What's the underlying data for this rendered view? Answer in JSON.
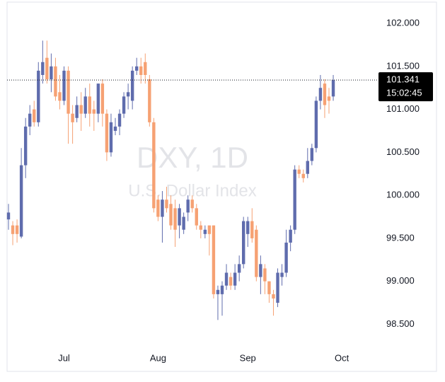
{
  "chart_data": {
    "type": "candlestick",
    "title": "DXY, 1D",
    "subtitle": "U.S. Dollar Index",
    "countdown": "15:02:45",
    "up_color": "#5f6cad",
    "down_color": "#f6a173",
    "categories": [
      null,
      null,
      null,
      null,
      null,
      null,
      null,
      null,
      null,
      null,
      null,
      null,
      null,
      "Jul",
      null,
      null,
      null,
      null,
      null,
      null,
      null,
      null,
      null,
      null,
      null,
      null,
      null,
      null,
      null,
      null,
      null,
      null,
      null,
      null,
      null,
      "Aug",
      null,
      null,
      null,
      null,
      null,
      null,
      null,
      null,
      null,
      null,
      null,
      null,
      null,
      null,
      null,
      null,
      null,
      null,
      null,
      null,
      "Sep",
      null,
      null,
      null,
      null,
      null,
      null,
      null,
      null,
      null,
      null,
      null,
      null,
      null,
      null,
      null,
      null,
      null,
      null,
      null,
      null,
      null,
      "Oct"
    ],
    "open": [
      99.72,
      99.65,
      99.65,
      99.52,
      100.35,
      100.8,
      101.0,
      100.85,
      101.4,
      101.6,
      101.35,
      101.5,
      101.2,
      101.1,
      101.45,
      100.95,
      100.9,
      101.05,
      100.95,
      101.15,
      101.0,
      100.95,
      101.3,
      100.95,
      100.5,
      100.75,
      100.8,
      100.95,
      101.15,
      101.1,
      101.45,
      101.5,
      101.55,
      101.35,
      100.85,
      99.95,
      99.75,
      99.95,
      99.9,
      99.85,
      99.65,
      99.6,
      99.8,
      99.95,
      99.85,
      99.65,
      99.55,
      99.65,
      99.65,
      98.85,
      98.85,
      98.95,
      99.05,
      98.95,
      99.1,
      99.2,
      99.55,
      99.7,
      99.6,
      99.05,
      99.15,
      99.0,
      98.85,
      98.75,
      99.05,
      99.1,
      99.45,
      99.6,
      100.3,
      100.25,
      100.25,
      100.4,
      100.55,
      101.1,
      101.3,
      101.15,
      101.15,
      null,
      null
    ],
    "high": [
      99.9,
      99.7,
      99.72,
      100.55,
      100.9,
      101.05,
      101.1,
      101.55,
      101.8,
      101.8,
      101.65,
      101.6,
      101.4,
      101.5,
      101.5,
      101.05,
      101.15,
      101.2,
      101.25,
      101.3,
      101.1,
      101.3,
      101.35,
      101.0,
      100.95,
      100.9,
      101.0,
      101.2,
      101.3,
      101.5,
      101.6,
      101.6,
      101.65,
      101.4,
      100.9,
      100.0,
      100.05,
      100.1,
      100.0,
      99.95,
      99.9,
      99.8,
      100.0,
      100.0,
      99.9,
      99.7,
      99.65,
      99.65,
      99.65,
      98.95,
      99.0,
      99.2,
      99.1,
      99.2,
      99.3,
      99.75,
      99.75,
      99.85,
      99.65,
      99.3,
      99.2,
      99.0,
      98.9,
      99.15,
      99.2,
      99.6,
      99.65,
      100.35,
      100.35,
      100.3,
      100.55,
      100.6,
      101.15,
      101.4,
      101.35,
      101.25,
      101.4,
      null,
      null
    ],
    "low": [
      99.6,
      99.42,
      99.45,
      99.5,
      100.2,
      100.7,
      100.8,
      100.8,
      101.3,
      101.3,
      101.2,
      101.1,
      101.0,
      101.05,
      100.6,
      100.6,
      100.85,
      100.75,
      100.9,
      100.8,
      100.75,
      100.85,
      100.8,
      100.4,
      100.45,
      100.7,
      100.7,
      100.9,
      101.0,
      101.0,
      101.4,
      101.3,
      101.3,
      100.8,
      99.8,
      99.7,
      99.45,
      99.8,
      99.6,
      99.4,
      99.5,
      99.55,
      99.7,
      99.8,
      99.6,
      99.5,
      99.5,
      99.3,
      98.8,
      98.55,
      98.6,
      98.9,
      98.9,
      98.9,
      99.0,
      99.15,
      99.4,
      99.45,
      99.0,
      98.85,
      98.85,
      98.75,
      98.6,
      98.7,
      98.95,
      99.05,
      99.35,
      99.55,
      100.2,
      100.15,
      100.2,
      100.35,
      100.5,
      101.0,
      100.9,
      100.95,
      101.1,
      null,
      null
    ],
    "close": [
      99.8,
      99.55,
      99.55,
      100.35,
      100.8,
      100.95,
      100.85,
      101.45,
      101.55,
      101.35,
      101.5,
      101.15,
      101.1,
      101.45,
      100.95,
      100.85,
      101.05,
      100.95,
      101.15,
      100.95,
      100.95,
      101.3,
      100.95,
      100.5,
      100.85,
      100.8,
      100.95,
      101.15,
      101.2,
      101.45,
      101.5,
      101.4,
      101.4,
      100.85,
      99.85,
      99.75,
      99.95,
      99.85,
      99.65,
      99.6,
      99.85,
      99.75,
      99.95,
      99.85,
      99.65,
      99.6,
      99.6,
      99.55,
      98.85,
      98.9,
      98.95,
      99.1,
      98.95,
      99.1,
      99.2,
      99.7,
      99.7,
      99.5,
      99.05,
      99.2,
      99.0,
      98.85,
      98.8,
      99.1,
      99.1,
      99.45,
      99.6,
      100.3,
      100.25,
      100.2,
      100.4,
      100.55,
      101.1,
      101.25,
      101.05,
      101.1,
      101.341,
      null,
      null
    ],
    "ylim": [
      98.24,
      102.19
    ],
    "yticks": [
      {
        "value": 98.5,
        "label": "98.500"
      },
      {
        "value": 99,
        "label": "99.000"
      },
      {
        "value": 99.5,
        "label": "99.500"
      },
      {
        "value": 100,
        "label": "100.000"
      },
      {
        "value": 100.5,
        "label": "100.500"
      },
      {
        "value": 101,
        "label": "101.000"
      },
      {
        "value": 101.5,
        "label": "101.500"
      },
      {
        "value": 102,
        "label": "102.000"
      }
    ]
  }
}
